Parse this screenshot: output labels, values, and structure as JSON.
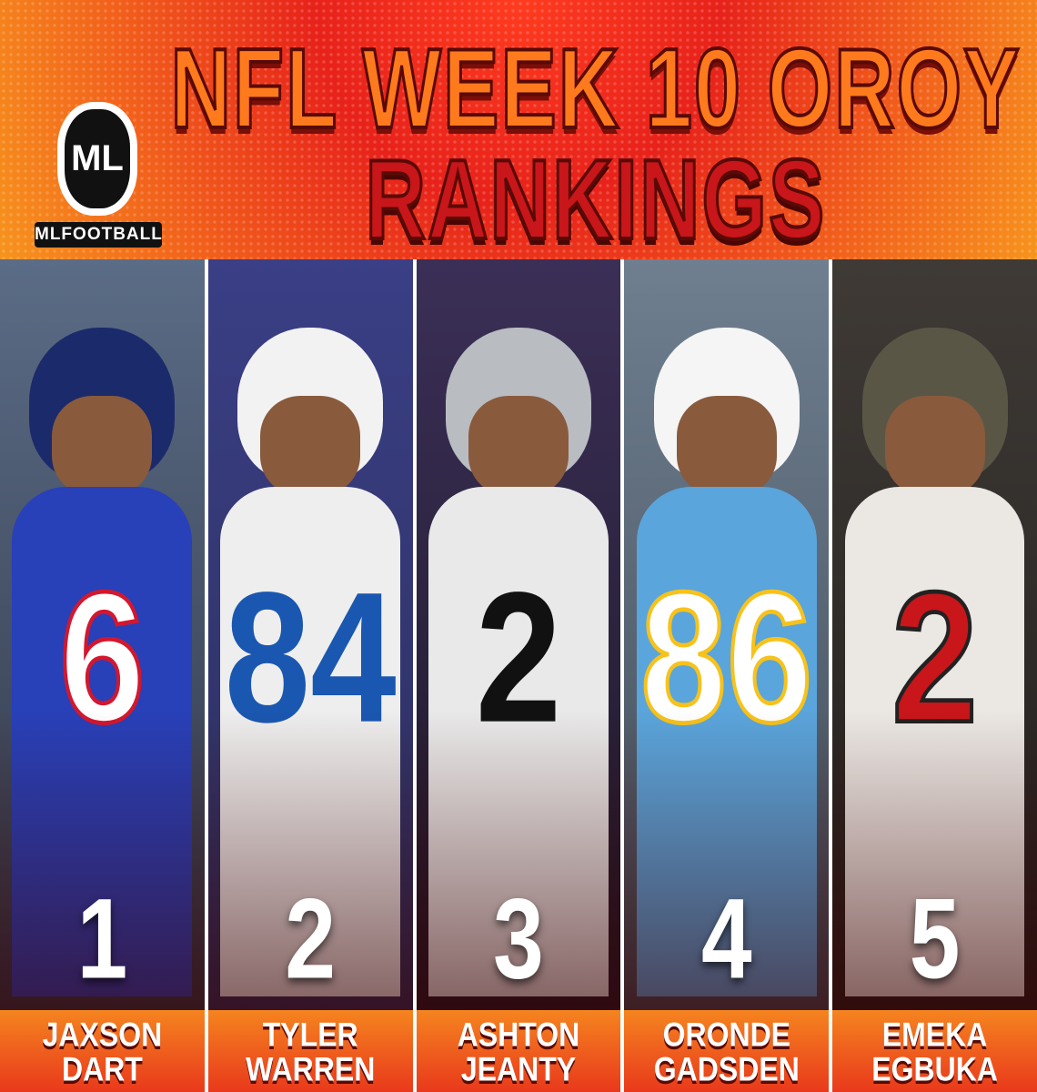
{
  "header": {
    "title_lines": [
      "NFL WEEK 10 OROY",
      "RANKINGS"
    ]
  },
  "logo": {
    "text": "MLFOOTBALL"
  },
  "players": [
    {
      "rank": 1,
      "first": "JAXSON",
      "last": "DART",
      "jersey": "6"
    },
    {
      "rank": 2,
      "first": "TYLER",
      "last": "WARREN",
      "jersey": "84"
    },
    {
      "rank": 3,
      "first": "ASHTON",
      "last": "JEANTY",
      "jersey": "2"
    },
    {
      "rank": 4,
      "first": "ORONDE",
      "last": "GADSDEN",
      "jersey": "86"
    },
    {
      "rank": 5,
      "first": "EMEKA",
      "last": "EGBUKA",
      "jersey": "2"
    }
  ]
}
